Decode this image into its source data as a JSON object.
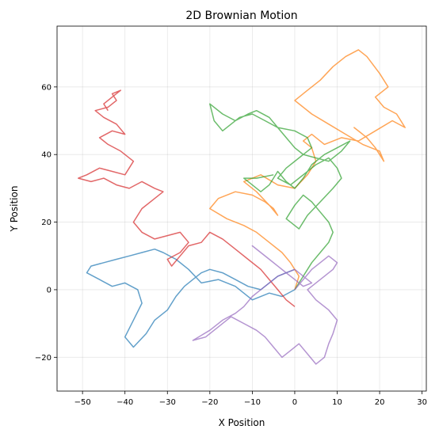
{
  "chart_data": {
    "type": "line",
    "title": "2D Brownian Motion",
    "xlabel": "X Position",
    "ylabel": "Y Position",
    "xlim": [
      -56,
      31
    ],
    "ylim": [
      -30,
      78
    ],
    "xticks": [
      -50,
      -40,
      -30,
      -20,
      -10,
      0,
      10,
      20,
      30
    ],
    "yticks": [
      -20,
      0,
      20,
      40,
      60
    ],
    "xtick_labels": [
      "−50",
      "−40",
      "−30",
      "−20",
      "−10",
      "0",
      "10",
      "20",
      "30"
    ],
    "ytick_labels": [
      "−20",
      "0",
      "20",
      "40",
      "60"
    ],
    "grid": true,
    "legend": "none",
    "series": [
      {
        "color": "#1f77b4",
        "opacity": 0.7,
        "x": [
          0,
          -3,
          -6,
          -10,
          -14,
          -18,
          -22,
          -25,
          -28,
          -31,
          -33,
          -36,
          -39,
          -42,
          -45,
          -48,
          -49,
          -46,
          -43,
          -40,
          -37,
          -36,
          -38,
          -40,
          -38,
          -35,
          -33,
          -30,
          -28,
          -26,
          -24,
          -22,
          -20,
          -17,
          -14,
          -11,
          -8,
          -6,
          -4,
          -2,
          0
        ],
        "y": [
          0,
          -2,
          -1,
          -3,
          1,
          3,
          2,
          6,
          9,
          11,
          12,
          11,
          10,
          9,
          8,
          7,
          5,
          3,
          1,
          2,
          0,
          -4,
          -9,
          -14,
          -17,
          -13,
          -9,
          -6,
          -2,
          1,
          3,
          5,
          6,
          5,
          3,
          1,
          0,
          2,
          4,
          5,
          6
        ]
      },
      {
        "color": "#ff7f0e",
        "opacity": 0.7,
        "x": [
          0,
          1,
          -1,
          -3,
          -6,
          -9,
          -12,
          -16,
          -20,
          -18,
          -14,
          -10,
          -7,
          -5,
          -4,
          -6,
          -9,
          -12,
          -8,
          -4,
          0,
          3,
          5,
          4,
          2,
          4,
          7,
          11,
          15,
          19,
          23,
          26,
          24,
          21,
          19,
          22,
          20,
          17,
          15,
          12,
          9,
          6,
          3,
          0,
          4,
          8,
          12,
          16,
          20,
          21,
          19,
          17,
          14,
          16
        ],
        "y": [
          0,
          4,
          8,
          11,
          14,
          17,
          19,
          21,
          24,
          27,
          29,
          28,
          26,
          24,
          22,
          25,
          29,
          32,
          34,
          31,
          30,
          34,
          38,
          42,
          44,
          46,
          43,
          45,
          44,
          47,
          50,
          48,
          52,
          54,
          57,
          60,
          64,
          69,
          71,
          69,
          66,
          62,
          59,
          56,
          52,
          49,
          46,
          43,
          41,
          38,
          42,
          45,
          48,
          46
        ]
      },
      {
        "color": "#2ca02c",
        "opacity": 0.7,
        "x": [
          0,
          2,
          4,
          6,
          8,
          9,
          8,
          6,
          4,
          2,
          0,
          -2,
          1,
          3,
          6,
          9,
          11,
          10,
          8,
          5,
          2,
          -1,
          -4,
          -2,
          1,
          4,
          3,
          0,
          -4,
          -7,
          -10,
          -13,
          -15,
          -17,
          -19,
          -20,
          -17,
          -14,
          -11,
          -9,
          -6,
          -4,
          -2,
          0,
          2,
          5,
          8,
          11,
          13,
          10,
          7,
          4,
          2,
          0,
          -2,
          -4,
          -6,
          -8,
          -10,
          -12,
          -9,
          -5
        ],
        "y": [
          0,
          4,
          8,
          11,
          14,
          17,
          20,
          23,
          26,
          28,
          25,
          21,
          18,
          22,
          26,
          30,
          33,
          36,
          39,
          37,
          34,
          31,
          33,
          36,
          39,
          42,
          45,
          47,
          48,
          50,
          52,
          51,
          49,
          47,
          50,
          55,
          52,
          50,
          52,
          53,
          51,
          48,
          45,
          42,
          40,
          39,
          38,
          41,
          44,
          42,
          40,
          37,
          33,
          30,
          32,
          35,
          31,
          29,
          31,
          33,
          33,
          34
        ]
      },
      {
        "color": "#d62728",
        "opacity": 0.7,
        "x": [
          0,
          -2,
          -4,
          -6,
          -8,
          -11,
          -14,
          -17,
          -20,
          -22,
          -25,
          -27,
          -29,
          -30,
          -27,
          -25,
          -27,
          -30,
          -33,
          -36,
          -38,
          -36,
          -33,
          -31,
          -33,
          -36,
          -39,
          -42,
          -45,
          -48,
          -51,
          -49,
          -46,
          -43,
          -40,
          -38,
          -41,
          -44,
          -46,
          -43,
          -40,
          -42,
          -45,
          -47,
          -44,
          -42,
          -43,
          -41,
          -43,
          -45,
          -44
        ],
        "y": [
          -5,
          -3,
          0,
          3,
          6,
          9,
          12,
          15,
          17,
          14,
          13,
          10,
          7,
          9,
          11,
          14,
          17,
          16,
          15,
          17,
          20,
          24,
          27,
          29,
          30,
          32,
          30,
          31,
          33,
          32,
          33,
          34,
          36,
          35,
          34,
          38,
          41,
          43,
          45,
          47,
          46,
          49,
          51,
          53,
          54,
          56,
          58,
          59,
          57,
          55,
          53
        ]
      },
      {
        "color": "#9467bd",
        "opacity": 0.7,
        "x": [
          0,
          2,
          4,
          6,
          8,
          10,
          9,
          7,
          5,
          3,
          5,
          8,
          10,
          9,
          8,
          7,
          5,
          3,
          1,
          -1,
          -3,
          -5,
          -7,
          -9,
          -12,
          -15,
          -18,
          -21,
          -24,
          -20,
          -17,
          -14,
          -12,
          -10,
          -8,
          -6,
          -4,
          -2,
          0,
          2,
          4,
          2,
          0,
          -2,
          -4,
          -6,
          -8,
          -10,
          -8,
          -6
        ],
        "y": [
          0,
          3,
          6,
          8,
          10,
          8,
          6,
          4,
          2,
          0,
          -3,
          -6,
          -9,
          -13,
          -16,
          -20,
          -22,
          -19,
          -16,
          -18,
          -20,
          -17,
          -14,
          -12,
          -10,
          -8,
          -11,
          -14,
          -15,
          -12,
          -9,
          -7,
          -5,
          -2,
          0,
          2,
          4,
          5,
          6,
          4,
          2,
          1,
          3,
          5,
          7,
          9,
          11,
          13,
          11,
          9
        ]
      }
    ]
  }
}
